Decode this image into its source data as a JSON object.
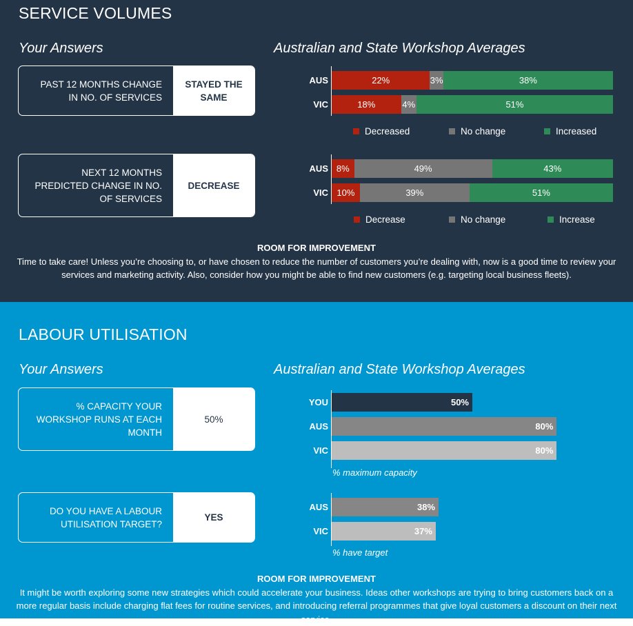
{
  "service_volumes": {
    "title": "SERVICE VOLUMES",
    "your_answers_label": "Your Answers",
    "averages_label": "Australian and State Workshop Averages",
    "q1": {
      "question": "PAST 12 MONTHS CHANGE IN NO. OF SERVICES",
      "answer": "STAYED THE SAME"
    },
    "q2": {
      "question": "NEXT 12 MONTHS PREDICTED CHANGE IN NO. OF SERVICES",
      "answer": "DECREASE"
    },
    "room_title": "ROOM FOR IMPROVEMENT",
    "room_text": "Time to take care! Unless you’re choosing to, or have chosen to reduce the number of customers you’re dealing with, now is a good time to review your services and marketing activity. Also, consider how you might be able to find new customers (e.g. targeting local business fleets)."
  },
  "labour_utilisation": {
    "title": "LABOUR UTILISATION",
    "your_answers_label": "Your Answers",
    "averages_label": "Australian and State Workshop Averages",
    "q1": {
      "question": "% CAPACITY YOUR WORKSHOP RUNS AT EACH MONTH",
      "answer": "50%"
    },
    "q2": {
      "question": "DO YOU HAVE A LABOUR UTILISATION TARGET?",
      "answer": "YES"
    },
    "room_title": "ROOM FOR IMPROVEMENT",
    "room_text": "It might be worth exploring some new strategies which could accelerate your business. Ideas other workshops are trying to bring customers back on a more regular basis include charging flat fees for routine services, and introducing referral programmes that give loyal customers a discount on their next service."
  },
  "colors": {
    "decrease": "#b2220f",
    "no_change": "#767676",
    "increase": "#2e8b57",
    "dark_panel": "#243447",
    "blue_panel": "#0096cf",
    "you_bar": "#243447",
    "aus_bar": "#868686",
    "vic_bar": "#bdbdbd"
  },
  "chart_data": [
    {
      "type": "bar",
      "stacked": true,
      "orientation": "horizontal",
      "categories": [
        "AUS",
        "VIC"
      ],
      "series": [
        {
          "name": "Decreased",
          "values": [
            22,
            18
          ],
          "labels": [
            "22%",
            "18%"
          ]
        },
        {
          "name": "No change",
          "values": [
            3,
            4
          ],
          "labels": [
            "3%",
            "4%"
          ]
        },
        {
          "name": "Increased",
          "values": [
            38,
            51
          ],
          "labels": [
            "38%",
            "51%"
          ]
        }
      ],
      "legend": "bottom"
    },
    {
      "type": "bar",
      "stacked": true,
      "orientation": "horizontal",
      "categories": [
        "AUS",
        "VIC"
      ],
      "series": [
        {
          "name": "Decrease",
          "values": [
            8,
            10
          ],
          "labels": [
            "8%",
            "10%"
          ]
        },
        {
          "name": "No change",
          "values": [
            49,
            39
          ],
          "labels": [
            "49%",
            "39%"
          ]
        },
        {
          "name": "Increase",
          "values": [
            43,
            51
          ],
          "labels": [
            "43%",
            "51%"
          ]
        }
      ],
      "legend": "bottom"
    },
    {
      "type": "bar",
      "orientation": "horizontal",
      "categories": [
        "YOU",
        "AUS",
        "VIC"
      ],
      "values": [
        50,
        80,
        80
      ],
      "labels": [
        "50%",
        "80%",
        "80%"
      ],
      "xlabel": "% maximum capacity",
      "xlim": [
        0,
        100
      ]
    },
    {
      "type": "bar",
      "orientation": "horizontal",
      "categories": [
        "AUS",
        "VIC"
      ],
      "values": [
        38,
        37
      ],
      "labels": [
        "38%",
        "37%"
      ],
      "xlabel": "% have target",
      "xlim": [
        0,
        100
      ]
    }
  ]
}
